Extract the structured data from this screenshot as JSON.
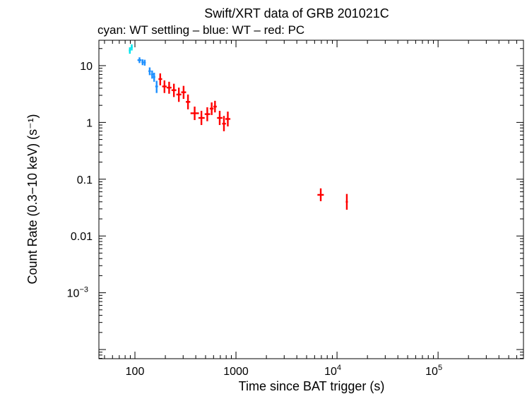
{
  "chart_data": {
    "type": "scatter",
    "title": "Swift/XRT data of GRB 201021C",
    "subtitle": "cyan: WT settling – blue: WT – red: PC",
    "xlabel": "Time since BAT trigger (s)",
    "ylabel": "Count Rate (0.3−10 keV) (s⁻¹)",
    "xscale": "log",
    "yscale": "log",
    "xlim": [
      44,
      700000
    ],
    "ylim": [
      6.9e-05,
      28
    ],
    "x_ticks": [
      {
        "value": 100,
        "label": "100"
      },
      {
        "value": 1000,
        "label": "1000"
      },
      {
        "value": 10000,
        "base": "10",
        "exp": "4"
      },
      {
        "value": 100000,
        "base": "10",
        "exp": "5"
      }
    ],
    "y_ticks": [
      {
        "value": 10,
        "label": "10"
      },
      {
        "value": 1,
        "label": "1"
      },
      {
        "value": 0.1,
        "label": "0.1"
      },
      {
        "value": 0.01,
        "label": "0.01"
      },
      {
        "value": 0.001,
        "base": "10",
        "exp": "−3"
      }
    ],
    "grid": false,
    "series": [
      {
        "name": "WT settling",
        "color": "#00e5ee",
        "points": [
          {
            "x": 89,
            "xerr": [
              2,
              2
            ],
            "y": 18.5,
            "yerr": [
              2.3,
              2.5
            ]
          },
          {
            "x": 93,
            "xerr": [
              2,
              2
            ],
            "y": 21.0,
            "yerr": [
              2.5,
              2.7
            ]
          }
        ]
      },
      {
        "name": "WT",
        "color": "#1e90ff",
        "points": [
          {
            "x": 111,
            "xerr": [
              5,
              5
            ],
            "y": 12.5,
            "yerr": [
              1.4,
              1.5
            ]
          },
          {
            "x": 119,
            "xerr": [
              3,
              3
            ],
            "y": 11.5,
            "yerr": [
              1.3,
              1.4
            ]
          },
          {
            "x": 125,
            "xerr": [
              3,
              3
            ],
            "y": 11.3,
            "yerr": [
              1.3,
              1.4
            ]
          },
          {
            "x": 140,
            "xerr": [
              4,
              4
            ],
            "y": 8.0,
            "yerr": [
              1.2,
              1.3
            ]
          },
          {
            "x": 148,
            "xerr": [
              4,
              4
            ],
            "y": 7.0,
            "yerr": [
              1.1,
              1.2
            ]
          },
          {
            "x": 155,
            "xerr": [
              4,
              4
            ],
            "y": 6.3,
            "yerr": [
              1.1,
              1.2
            ]
          },
          {
            "x": 164,
            "xerr": [
              5,
              5
            ],
            "y": 4.3,
            "yerr": [
              1.0,
              1.1
            ]
          }
        ]
      },
      {
        "name": "PC",
        "color": "#ff0000",
        "points": [
          {
            "x": 178,
            "xerr": [
              7,
              8
            ],
            "y": 5.8,
            "yerr": [
              1.3,
              1.5
            ]
          },
          {
            "x": 196,
            "xerr": [
              10,
              10
            ],
            "y": 4.3,
            "yerr": [
              1.0,
              1.2
            ]
          },
          {
            "x": 218,
            "xerr": [
              12,
              12
            ],
            "y": 4.1,
            "yerr": [
              0.9,
              1.1
            ]
          },
          {
            "x": 243,
            "xerr": [
              13,
              14
            ],
            "y": 3.7,
            "yerr": [
              0.9,
              1.1
            ]
          },
          {
            "x": 272,
            "xerr": [
              15,
              16
            ],
            "y": 3.1,
            "yerr": [
              0.8,
              1.0
            ]
          },
          {
            "x": 303,
            "xerr": [
              16,
              18
            ],
            "y": 3.4,
            "yerr": [
              0.8,
              1.0
            ]
          },
          {
            "x": 335,
            "xerr": [
              16,
              18
            ],
            "y": 2.3,
            "yerr": [
              0.6,
              0.8
            ]
          },
          {
            "x": 390,
            "xerr": [
              35,
              40
            ],
            "y": 1.45,
            "yerr": [
              0.35,
              0.45
            ]
          },
          {
            "x": 455,
            "xerr": [
              30,
              35
            ],
            "y": 1.2,
            "yerr": [
              0.3,
              0.4
            ]
          },
          {
            "x": 520,
            "xerr": [
              30,
              35
            ],
            "y": 1.4,
            "yerr": [
              0.35,
              0.45
            ]
          },
          {
            "x": 575,
            "xerr": [
              25,
              25
            ],
            "y": 1.75,
            "yerr": [
              0.4,
              0.5
            ]
          },
          {
            "x": 620,
            "xerr": [
              22,
              25
            ],
            "y": 1.9,
            "yerr": [
              0.4,
              0.5
            ]
          },
          {
            "x": 690,
            "xerr": [
              40,
              45
            ],
            "y": 1.2,
            "yerr": [
              0.3,
              0.4
            ]
          },
          {
            "x": 760,
            "xerr": [
              30,
              35
            ],
            "y": 0.95,
            "yerr": [
              0.25,
              0.35
            ]
          },
          {
            "x": 830,
            "xerr": [
              45,
              50
            ],
            "y": 1.15,
            "yerr": [
              0.3,
              0.4
            ]
          },
          {
            "x": 6900,
            "xerr": [
              500,
              500
            ],
            "y": 0.053,
            "yerr": [
              0.012,
              0.016
            ]
          },
          {
            "x": 12500,
            "xerr": [
              300,
              300
            ],
            "y": 0.04,
            "yerr": [
              0.011,
              0.015
            ]
          }
        ]
      }
    ]
  }
}
